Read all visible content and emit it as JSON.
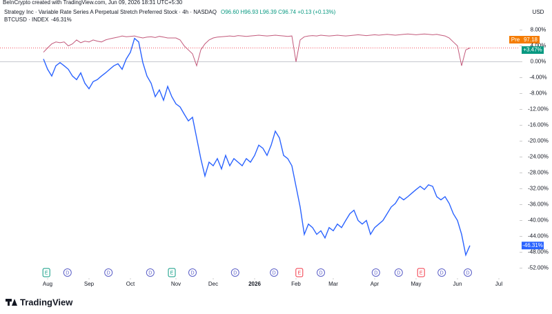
{
  "chart_data": {
    "type": "line",
    "watermark": "BeInCrypto created with TradingView.com, Jun 09, 2026 18:31 UTC+5:30",
    "currency": "USD",
    "brand": "TradingView",
    "legend": [
      {
        "name": "Strategy Inc · Variable Rate Series A Perpetual Stretch Preferred Stock · 4h · NASDAQ",
        "detail": "O96.60 H96.93 L96.39 C96.74 +0.13 (+0.13%)"
      },
      {
        "name": "BTCUSD · INDEX",
        "detail": "-46.31%"
      }
    ],
    "price_badge": {
      "label": "Pre",
      "price": "97.18"
    },
    "xlim": [
      0,
      115
    ],
    "xticks": [
      {
        "value": 1,
        "label": "Aug"
      },
      {
        "value": 11,
        "label": "Sep"
      },
      {
        "value": 21,
        "label": "Oct"
      },
      {
        "value": 32,
        "label": "Nov"
      },
      {
        "value": 41,
        "label": "Dec"
      },
      {
        "value": 51,
        "label": "2026"
      },
      {
        "value": 61,
        "label": "Feb"
      },
      {
        "value": 70,
        "label": "Mar"
      },
      {
        "value": 80,
        "label": "Apr"
      },
      {
        "value": 90,
        "label": "May"
      },
      {
        "value": 100,
        "label": "Jun"
      },
      {
        "value": 110,
        "label": "Jul"
      }
    ],
    "ylim": [
      -54,
      10
    ],
    "yticks": [
      {
        "value": 8,
        "label": "8.00%"
      },
      {
        "value": 4,
        "label": "4.00%"
      },
      {
        "value": 0,
        "label": "0.00%"
      },
      {
        "value": -4,
        "label": "-4.00%"
      },
      {
        "value": -8,
        "label": "-8.00%"
      },
      {
        "value": -12,
        "label": "-12.00%"
      },
      {
        "value": -16,
        "label": "-16.00%"
      },
      {
        "value": -20,
        "label": "-20.00%"
      },
      {
        "value": -24,
        "label": "-24.00%"
      },
      {
        "value": -28,
        "label": "-28.00%"
      },
      {
        "value": -32,
        "label": "-32.00%"
      },
      {
        "value": -36,
        "label": "-36.00%"
      },
      {
        "value": -40,
        "label": "-40.00%"
      },
      {
        "value": -44,
        "label": "-44.00%"
      },
      {
        "value": -48,
        "label": "-48.00%"
      },
      {
        "value": -52,
        "label": "-52.00%"
      }
    ],
    "series": [
      {
        "name": "Strategy Inc",
        "color": "#c2587a",
        "last_label": "+3.47%",
        "label_color": "#089981",
        "values": [
          2.4,
          3.5,
          4.5,
          5.0,
          4.8,
          5.0,
          4.0,
          4.5,
          5.5,
          4.8,
          5.2,
          5.0,
          5.5,
          5.2,
          5.0,
          5.5,
          5.8,
          6.0,
          6.2,
          6.5,
          6.3,
          6.4,
          6.5,
          6.2,
          6.0,
          6.2,
          6.3,
          6.1,
          6.4,
          6.2,
          6.0,
          6.0,
          6.0,
          5.5,
          4.0,
          3.0,
          2.0,
          -1.0,
          3.0,
          4.5,
          5.5,
          6.0,
          6.2,
          6.3,
          6.4,
          6.5,
          6.4,
          6.6,
          6.5,
          6.4,
          6.5,
          6.6,
          6.7,
          6.6,
          6.5,
          6.6,
          6.7,
          6.6,
          6.5,
          6.4,
          6.5,
          0.0,
          5.5,
          6.3,
          6.5,
          6.6,
          6.5,
          6.7,
          6.6,
          6.5,
          6.6,
          6.7,
          6.6,
          6.5,
          6.6,
          6.7,
          6.8,
          6.7,
          6.6,
          6.7,
          6.8,
          6.7,
          6.8,
          6.9,
          6.8,
          6.7,
          6.8,
          6.9,
          7.0,
          6.9,
          6.8,
          6.9,
          7.0,
          6.9,
          6.8,
          6.9,
          6.7,
          6.5,
          6.0,
          5.0,
          4.0,
          -1.0,
          3.0,
          3.47
        ]
      },
      {
        "name": "BTCUSD",
        "color": "#2962ff",
        "last_label": "-46.31%",
        "label_color": "#2962ff",
        "values": [
          0.7,
          -1.9,
          -3.6,
          -1.0,
          -0.2,
          -1.0,
          -1.9,
          -3.6,
          -4.5,
          -2.8,
          -5.4,
          -6.8,
          -5.0,
          -4.5,
          -3.6,
          -2.8,
          -1.9,
          -1.0,
          -0.5,
          -1.9,
          0.7,
          2.4,
          5.9,
          5.0,
          -0.2,
          -3.6,
          -5.4,
          -8.8,
          -7.1,
          -9.7,
          -6.2,
          -8.8,
          -10.6,
          -11.4,
          -13.2,
          -14.9,
          -14.0,
          -19.2,
          -24.4,
          -28.8,
          -25.3,
          -26.2,
          -24.4,
          -27.0,
          -23.6,
          -26.2,
          -24.4,
          -25.3,
          -26.2,
          -24.4,
          -25.3,
          -23.6,
          -21.0,
          -21.8,
          -23.6,
          -21.0,
          -17.5,
          -19.2,
          -23.6,
          -24.4,
          -26.2,
          -31.4,
          -36.6,
          -43.5,
          -40.9,
          -41.8,
          -43.5,
          -42.6,
          -44.4,
          -41.8,
          -42.6,
          -40.9,
          -41.8,
          -40.0,
          -38.3,
          -37.4,
          -40.0,
          -40.9,
          -40.0,
          -43.5,
          -41.8,
          -40.9,
          -40.0,
          -38.3,
          -36.6,
          -35.7,
          -34.0,
          -34.8,
          -34.0,
          -33.1,
          -32.2,
          -31.4,
          -32.2,
          -31.0,
          -31.4,
          -34.0,
          -34.8,
          -34.0,
          -35.7,
          -38.3,
          -40.0,
          -43.5,
          -48.7,
          -46.31
        ]
      }
    ],
    "events": [
      {
        "x": 0.7,
        "label": "E"
      },
      {
        "x": 5.8,
        "label": "D"
      },
      {
        "x": 15.7,
        "label": "D"
      },
      {
        "x": 25.8,
        "label": "D"
      },
      {
        "x": 31,
        "label": "E"
      },
      {
        "x": 36,
        "label": "D"
      },
      {
        "x": 46.3,
        "label": "D"
      },
      {
        "x": 55.7,
        "label": "D"
      },
      {
        "x": 61.8,
        "label": "E"
      },
      {
        "x": 67,
        "label": "D"
      },
      {
        "x": 80.3,
        "label": "D"
      },
      {
        "x": 85.8,
        "label": "D"
      },
      {
        "x": 91.2,
        "label": "E"
      },
      {
        "x": 96.2,
        "label": "D"
      },
      {
        "x": 102.5,
        "label": "D"
      }
    ]
  }
}
